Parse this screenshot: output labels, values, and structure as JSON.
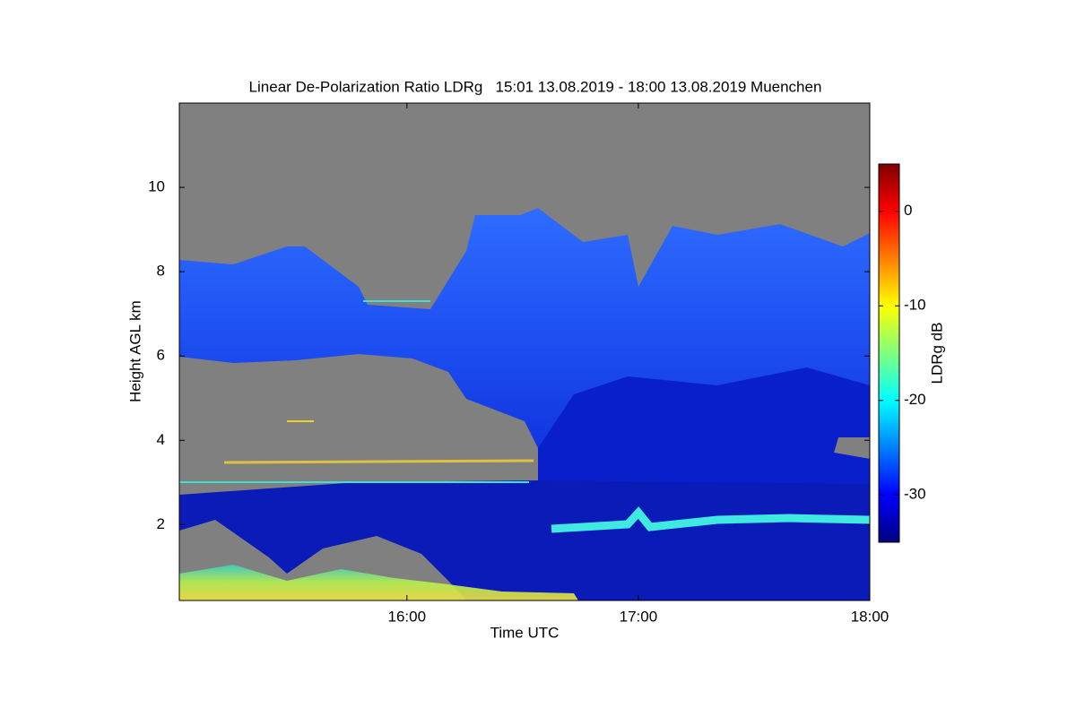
{
  "chart_data": {
    "type": "heatmap",
    "title": "Linear De-Polarization Ratio LDRg   15:01 13.08.2019 - 18:00 13.08.2019 Muenchen",
    "x_label": "Time UTC",
    "y_label": "Height AGL km",
    "colorbar_label": "LDRg dB",
    "colormap": "jet",
    "xlim": [
      15.0167,
      18
    ],
    "xticks": [
      {
        "value": 16,
        "label": "16:00"
      },
      {
        "value": 17,
        "label": "17:00"
      },
      {
        "value": 18,
        "label": "18:00"
      }
    ],
    "ylim": [
      0.2,
      12
    ],
    "yticks": [
      2,
      4,
      6,
      8,
      10
    ],
    "clim": [
      -35,
      5
    ],
    "cticks": [
      0,
      -10,
      -20,
      -30
    ]
  }
}
